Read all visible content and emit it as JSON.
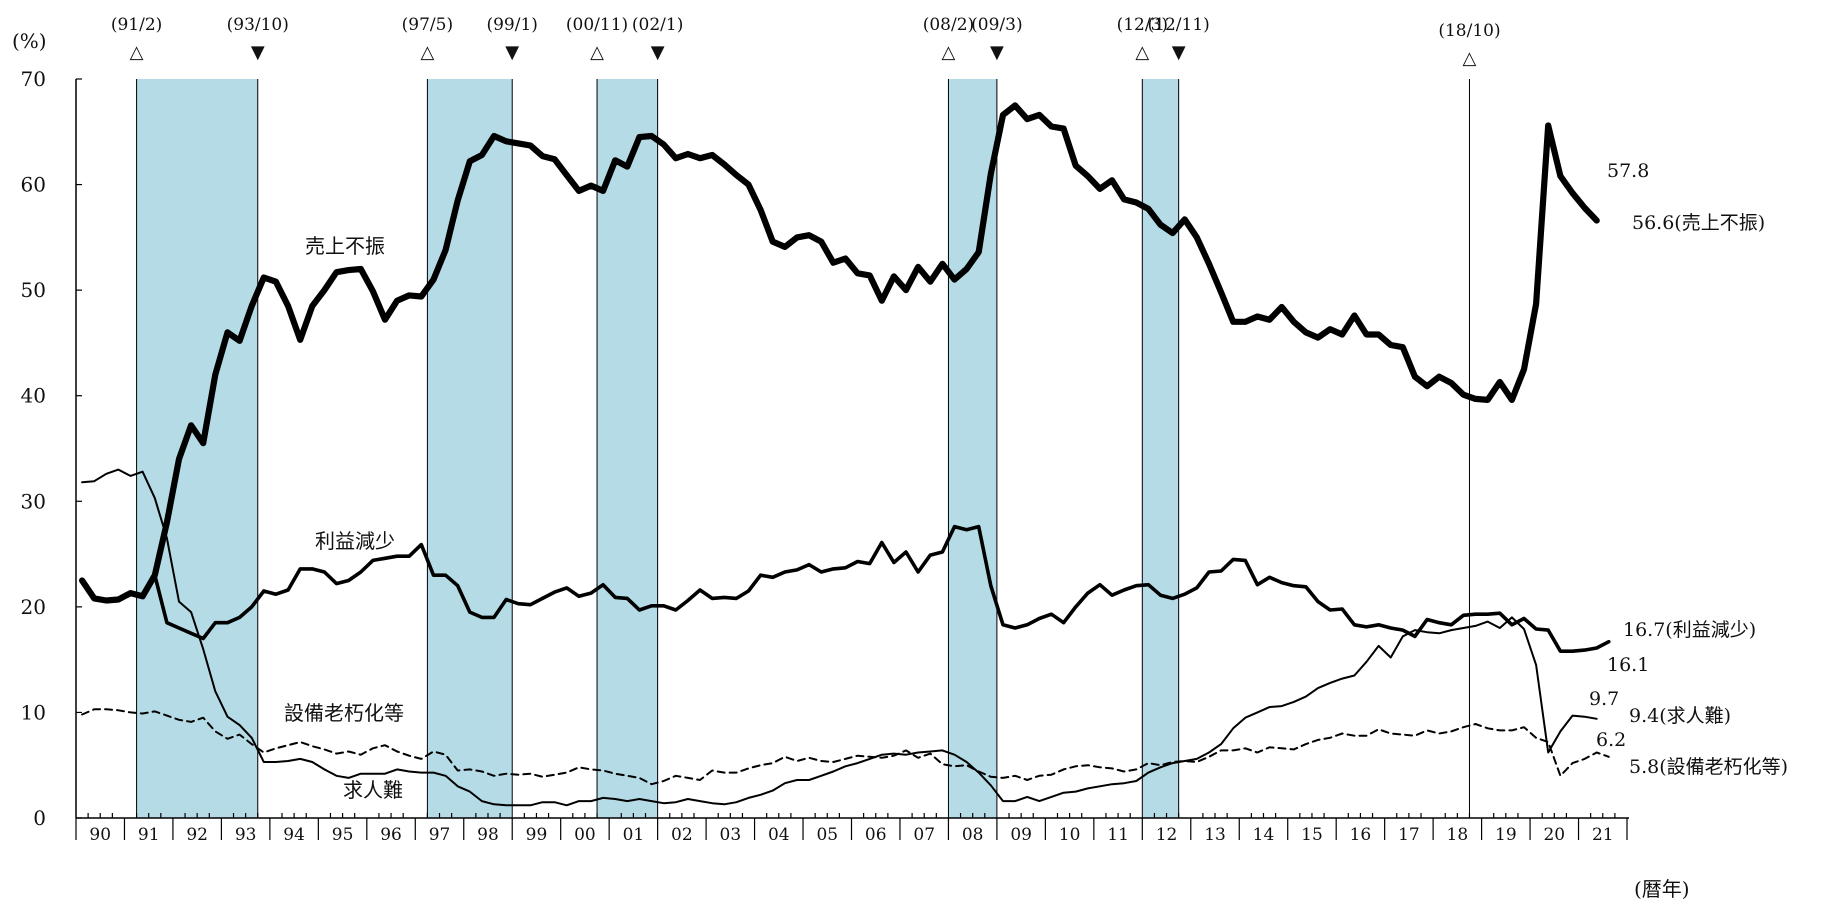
{
  "chart_data": {
    "type": "line",
    "ylabel": "(%)",
    "xlabel": "(暦年)",
    "ylim": [
      0,
      70
    ],
    "yticks": [
      "0",
      "10",
      "20",
      "30",
      "40",
      "50",
      "60",
      "70"
    ],
    "year_labels": [
      "90",
      "91",
      "92",
      "93",
      "94",
      "95",
      "96",
      "97",
      "98",
      "99",
      "00",
      "01",
      "02",
      "03",
      "04",
      "05",
      "06",
      "07",
      "08",
      "09",
      "10",
      "11",
      "12",
      "13",
      "14",
      "15",
      "16",
      "17",
      "18",
      "19",
      "20",
      "21"
    ],
    "x_range": [
      "1990Q1",
      "2021Q4"
    ],
    "grid": false,
    "recessions": [
      {
        "peak": "(91/2)",
        "trough": "(93/10)",
        "start": 1991.25,
        "end": 1993.75
      },
      {
        "peak": "(97/5)",
        "trough": "(99/1)",
        "start": 1997.25,
        "end": 1999.0
      },
      {
        "peak": "(00/11)",
        "trough": "(02/1)",
        "start": 2000.75,
        "end": 2002.0
      },
      {
        "peak": "(08/2)",
        "trough": "(09/3)",
        "start": 2008.0,
        "end": 2009.0
      },
      {
        "peak": "(12/3)",
        "trough": "(12/11)",
        "start": 2012.0,
        "end": 2012.75
      }
    ],
    "extra_peak": {
      "label": "(18/10)",
      "x": 2018.75
    },
    "peak_symbol": "△",
    "trough_symbol": "▼",
    "recession_color": "#b5dce6",
    "series": [
      {
        "name": "売上不振",
        "end_label": "56.6(売上不振)",
        "prev_label": "57.8",
        "style": "bold",
        "values": [
          22.5,
          20.8,
          20.6,
          20.7,
          21.3,
          21.0,
          23.0,
          28.0,
          34.0,
          37.2,
          35.5,
          42.0,
          46.0,
          45.2,
          48.5,
          51.2,
          50.8,
          48.5,
          45.3,
          48.5,
          50.0,
          51.7,
          51.9,
          52.0,
          49.9,
          47.2,
          49.0,
          49.5,
          49.4,
          51.0,
          53.8,
          58.5,
          62.2,
          62.8,
          64.6,
          64.1,
          63.9,
          63.7,
          62.7,
          62.4,
          60.9,
          59.4,
          59.9,
          59.4,
          62.3,
          61.7,
          64.5,
          64.6,
          63.8,
          62.5,
          62.9,
          62.5,
          62.8,
          61.9,
          60.9,
          60.0,
          57.6,
          54.6,
          54.1,
          55.0,
          55.2,
          54.6,
          52.6,
          53.0,
          51.6,
          51.4,
          49.0,
          51.3,
          50.0,
          52.2,
          50.8,
          52.5,
          51.0,
          52.0,
          53.6,
          61.0,
          66.6,
          67.5,
          66.2,
          66.6,
          65.5,
          65.3,
          61.8,
          60.8,
          59.6,
          60.4,
          58.6,
          58.3,
          57.7,
          56.2,
          55.4,
          56.7,
          55.0,
          52.5,
          49.8,
          47.0,
          47.0,
          47.5,
          47.2,
          48.4,
          47.0,
          46.0,
          45.5,
          46.3,
          45.8,
          47.6,
          45.8,
          45.8,
          44.8,
          44.6,
          41.8,
          40.9,
          41.8,
          41.2,
          40.1,
          39.7,
          39.6,
          41.3,
          39.6,
          42.5,
          48.7,
          65.6,
          60.8,
          59.2,
          57.8,
          56.6
        ]
      },
      {
        "name": "利益減少",
        "end_label": "16.7(利益減少)",
        "prev_label": "16.1",
        "style": "medium",
        "values": [
          22.5,
          20.8,
          20.6,
          20.7,
          21.3,
          21.0,
          23.0,
          18.5,
          18.0,
          17.5,
          17.0,
          18.5,
          18.5,
          19.0,
          20.0,
          21.5,
          21.2,
          21.6,
          23.6,
          23.6,
          23.3,
          22.2,
          22.5,
          23.3,
          24.4,
          24.6,
          24.8,
          24.8,
          25.9,
          23.0,
          23.0,
          22.0,
          19.5,
          19.0,
          19.0,
          20.7,
          20.3,
          20.2,
          20.8,
          21.4,
          21.8,
          21.0,
          21.3,
          22.1,
          20.9,
          20.8,
          19.7,
          20.1,
          20.1,
          19.7,
          20.6,
          21.6,
          20.8,
          20.9,
          20.8,
          21.5,
          23.0,
          22.8,
          23.3,
          23.5,
          24.0,
          23.3,
          23.6,
          23.7,
          24.3,
          24.1,
          26.1,
          24.2,
          25.2,
          23.3,
          24.9,
          25.2,
          27.6,
          27.3,
          27.6,
          22.0,
          18.3,
          18.0,
          18.3,
          18.9,
          19.3,
          18.5,
          20.0,
          21.3,
          22.1,
          21.1,
          21.6,
          22.0,
          22.1,
          21.1,
          20.8,
          21.2,
          21.8,
          23.3,
          23.4,
          24.5,
          24.4,
          22.1,
          22.8,
          22.3,
          22.0,
          21.9,
          20.5,
          19.7,
          19.8,
          18.3,
          18.1,
          18.3,
          18.0,
          17.8,
          17.2,
          18.8,
          18.5,
          18.3,
          19.2,
          19.3,
          19.3,
          19.4,
          18.3,
          18.9,
          17.9,
          17.8,
          15.8,
          15.8,
          15.9,
          16.1,
          16.7
        ]
      },
      {
        "name": "求人難",
        "end_label": "9.4(求人難)",
        "prev_label": "9.7",
        "style": "thin",
        "values": [
          31.8,
          31.9,
          32.6,
          33.0,
          32.4,
          32.8,
          30.3,
          26.5,
          20.5,
          19.5,
          16.0,
          12.0,
          9.6,
          8.8,
          7.6,
          5.3,
          5.3,
          5.4,
          5.6,
          5.3,
          4.6,
          4.0,
          3.8,
          4.2,
          4.2,
          4.2,
          4.6,
          4.4,
          4.3,
          4.3,
          4.0,
          3.0,
          2.5,
          1.6,
          1.3,
          1.2,
          1.2,
          1.2,
          1.5,
          1.5,
          1.2,
          1.6,
          1.6,
          1.9,
          1.8,
          1.6,
          1.8,
          1.6,
          1.4,
          1.5,
          1.8,
          1.6,
          1.4,
          1.3,
          1.5,
          1.9,
          2.2,
          2.6,
          3.3,
          3.6,
          3.6,
          4.0,
          4.4,
          4.9,
          5.2,
          5.6,
          6.0,
          6.1,
          6.0,
          6.2,
          6.3,
          6.4,
          6.0,
          5.3,
          4.3,
          3.1,
          1.6,
          1.6,
          2.0,
          1.6,
          2.0,
          2.4,
          2.5,
          2.8,
          3.0,
          3.2,
          3.3,
          3.5,
          4.3,
          4.8,
          5.2,
          5.4,
          5.6,
          6.2,
          7.0,
          8.5,
          9.5,
          10.0,
          10.5,
          10.6,
          11.0,
          11.5,
          12.3,
          12.8,
          13.2,
          13.5,
          14.8,
          16.3,
          15.2,
          17.2,
          17.8,
          17.6,
          17.5,
          17.8,
          18.0,
          18.2,
          18.6,
          18.0,
          19.0,
          17.9,
          14.5,
          6.2,
          8.2,
          9.7,
          9.6,
          9.4
        ]
      },
      {
        "name": "設備老朽化等",
        "end_label": "5.8(設備老朽化等)",
        "prev_label": "6.2",
        "style": "dashed",
        "values": [
          9.8,
          10.3,
          10.3,
          10.2,
          10.0,
          9.9,
          10.1,
          9.7,
          9.3,
          9.1,
          9.5,
          8.2,
          7.5,
          7.9,
          7.0,
          6.2,
          6.6,
          6.9,
          7.2,
          6.8,
          6.5,
          6.1,
          6.3,
          6.0,
          6.6,
          6.9,
          6.3,
          5.9,
          5.6,
          6.3,
          6.0,
          4.5,
          4.6,
          4.4,
          4.0,
          4.2,
          4.1,
          4.2,
          3.9,
          4.1,
          4.3,
          4.8,
          4.6,
          4.5,
          4.2,
          4.0,
          3.8,
          3.2,
          3.5,
          4.0,
          3.8,
          3.6,
          4.5,
          4.3,
          4.3,
          4.7,
          5.0,
          5.2,
          5.8,
          5.4,
          5.7,
          5.4,
          5.3,
          5.6,
          5.9,
          5.8,
          5.7,
          5.9,
          6.4,
          5.7,
          6.1,
          5.1,
          4.9,
          5.0,
          4.4,
          3.9,
          3.8,
          4.0,
          3.6,
          4.0,
          4.1,
          4.6,
          4.9,
          5.0,
          4.8,
          4.7,
          4.4,
          4.6,
          5.2,
          5.0,
          5.3,
          5.4,
          5.3,
          5.8,
          6.4,
          6.4,
          6.6,
          6.2,
          6.7,
          6.6,
          6.5,
          7.0,
          7.4,
          7.6,
          8.0,
          7.8,
          7.8,
          8.4,
          8.0,
          7.9,
          7.8,
          8.3,
          8.0,
          8.2,
          8.6,
          8.9,
          8.5,
          8.3,
          8.3,
          8.6,
          7.6,
          7.2,
          4.0,
          5.2,
          5.6,
          6.2,
          5.8
        ]
      }
    ]
  }
}
